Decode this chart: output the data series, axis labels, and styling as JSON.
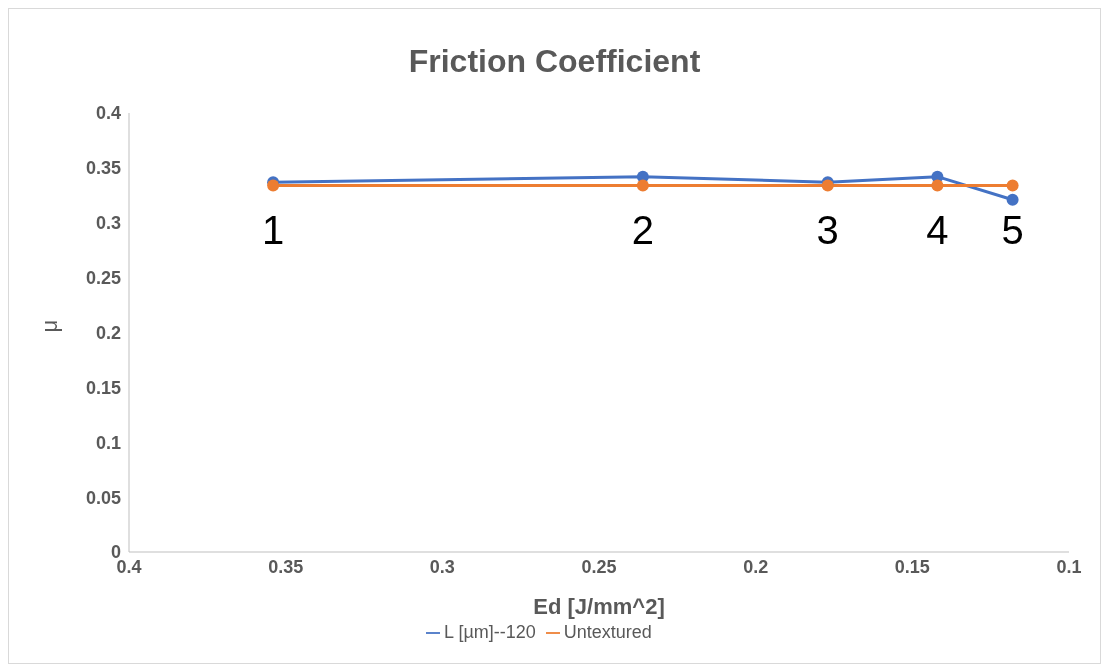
{
  "chart_data": {
    "type": "line",
    "title": "Friction Coefficient",
    "xlabel": "Ed [J/mm^2]",
    "ylabel": "μ",
    "x": [
      0.354,
      0.236,
      0.177,
      0.142,
      0.118
    ],
    "series": [
      {
        "name": "L [µm]--120",
        "color": "#4472c4",
        "values": [
          0.337,
          0.342,
          0.337,
          0.342,
          0.321
        ]
      },
      {
        "name": "Untextured",
        "color": "#ed7d31",
        "values": [
          0.334,
          0.334,
          0.334,
          0.334,
          0.334
        ]
      }
    ],
    "xlim": [
      0.4,
      0.1
    ],
    "xticks": [
      0.4,
      0.35,
      0.3,
      0.25,
      0.2,
      0.15,
      0.1
    ],
    "ylim": [
      0,
      0.4
    ],
    "yticks": [
      0,
      0.05,
      0.1,
      0.15,
      0.2,
      0.25,
      0.3,
      0.35,
      0.4
    ],
    "annotations": [
      {
        "text": "1",
        "x": 0.354,
        "y": 0.334
      },
      {
        "text": "2",
        "x": 0.236,
        "y": 0.334
      },
      {
        "text": "3",
        "x": 0.177,
        "y": 0.334
      },
      {
        "text": "4",
        "x": 0.142,
        "y": 0.334
      },
      {
        "text": "5",
        "x": 0.118,
        "y": 0.334
      }
    ],
    "grid": false,
    "legend": "bottom",
    "marker": "circle",
    "line_style": "solid"
  }
}
